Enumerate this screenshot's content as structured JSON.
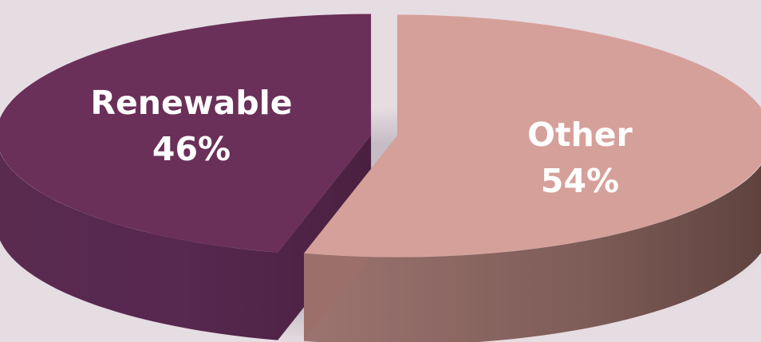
{
  "chart_data": {
    "type": "pie",
    "style": "3d-exploded",
    "categories": [
      "Renewable",
      "Other"
    ],
    "values": [
      46,
      54
    ],
    "unit": "%",
    "labels": [
      "Renewable",
      "Other"
    ],
    "value_labels": [
      "46%",
      "54%"
    ],
    "legend": "none",
    "colors": {
      "Renewable": "#6A3059",
      "Other": "#D6A09A",
      "Renewable_side": "#4E2444",
      "Other_side": "#6A4B46",
      "background": "#E6DDE3"
    }
  }
}
